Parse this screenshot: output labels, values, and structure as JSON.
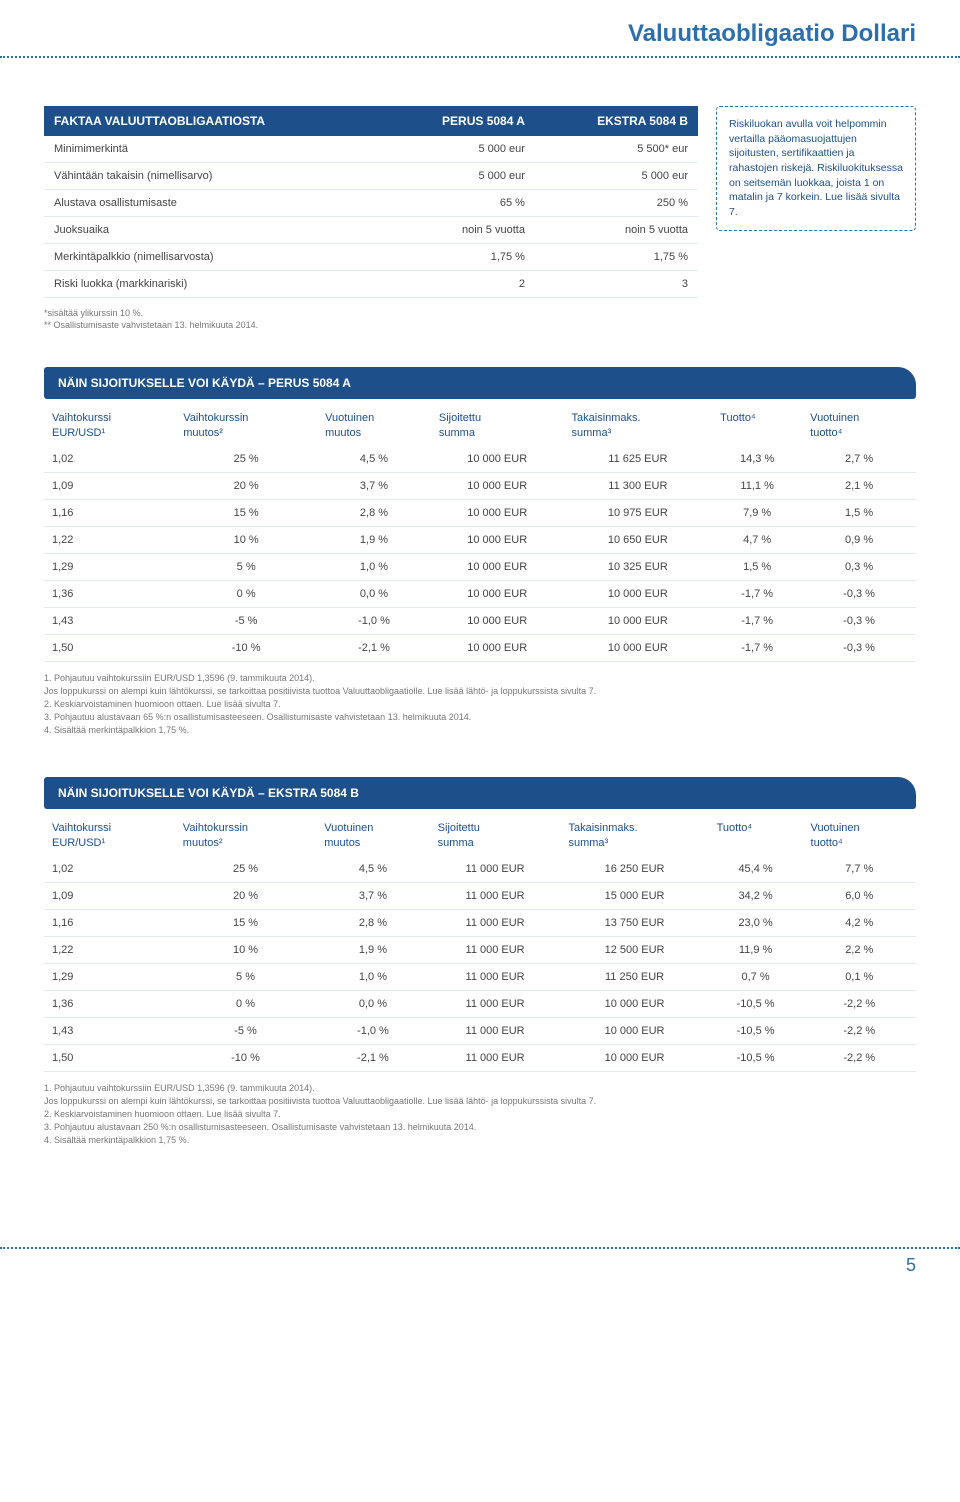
{
  "header": {
    "title": "Valuuttaobligaatio Dollari"
  },
  "facts": {
    "title": "FAKTAA VALUUTTAOBLIGAATIOSTA",
    "col1": "PERUS 5084 A",
    "col2": "EKSTRA 5084 B",
    "rows": [
      {
        "label": "Minimimerkintä",
        "a": "5 000 eur",
        "b": "5 500* eur"
      },
      {
        "label": "Vähintään takaisin (nimellisarvo)",
        "a": "5 000 eur",
        "b": "5 000 eur"
      },
      {
        "label": "Alustava osallistumisaste",
        "a": "65 %",
        "b": "250 %"
      },
      {
        "label": "Juoksuaika",
        "a": "noin 5 vuotta",
        "b": "noin 5 vuotta"
      },
      {
        "label": "Merkintäpalkkio (nimellisarvosta)",
        "a": "1,75 %",
        "b": "1,75 %"
      },
      {
        "label": "Riski luokka (markkinariski)",
        "a": "2",
        "b": "3"
      }
    ]
  },
  "riskbox": {
    "text": "Riskiluokan avulla voit helpommin vertailla pääomasuojattujen sijoitusten, sertifikaattien ja rahastojen riskejä. Riskiluokituksessa on seitsemän luokkaa, joista 1 on matalin ja 7 korkein. Lue lisää sivulta 7."
  },
  "factsFoot": {
    "l1": "*sisältää ylikurssin 10 %.",
    "l2": "** Osallistumisaste vahvistetaan 13. helmikuuta 2014."
  },
  "scenarioA": {
    "title": "NÄIN SIJOITUKSELLE VOI KÄYDÄ – PERUS 5084 A",
    "headers": {
      "c1a": "Vaihtokurssi",
      "c1b": "EUR/USD¹",
      "c2a": "Vaihtokurssin",
      "c2b": "muutos²",
      "c3a": "Vuotuinen",
      "c3b": "muutos",
      "c4a": "Sijoitettu",
      "c4b": "summa",
      "c5a": "Takaisinmaks.",
      "c5b": "summa³",
      "c6": "Tuotto⁴",
      "c7a": "Vuotuinen",
      "c7b": "tuotto⁴"
    },
    "rows": [
      [
        "1,02",
        "25 %",
        "4,5 %",
        "10 000 EUR",
        "11 625 EUR",
        "14,3 %",
        "2,7 %"
      ],
      [
        "1,09",
        "20 %",
        "3,7 %",
        "10 000 EUR",
        "11 300 EUR",
        "11,1 %",
        "2,1 %"
      ],
      [
        "1,16",
        "15 %",
        "2,8 %",
        "10 000 EUR",
        "10 975 EUR",
        "7,9 %",
        "1,5 %"
      ],
      [
        "1,22",
        "10 %",
        "1,9 %",
        "10 000 EUR",
        "10 650 EUR",
        "4,7 %",
        "0,9 %"
      ],
      [
        "1,29",
        "5 %",
        "1,0 %",
        "10 000 EUR",
        "10 325 EUR",
        "1,5 %",
        "0,3 %"
      ],
      [
        "1,36",
        "0 %",
        "0,0 %",
        "10 000 EUR",
        "10 000 EUR",
        "-1,7 %",
        "-0,3 %"
      ],
      [
        "1,43",
        "-5 %",
        "-1,0 %",
        "10 000 EUR",
        "10 000 EUR",
        "-1,7 %",
        "-0,3 %"
      ],
      [
        "1,50",
        "-10 %",
        "-2,1 %",
        "10 000 EUR",
        "10 000 EUR",
        "-1,7 %",
        "-0,3 %"
      ]
    ],
    "footnotes": [
      "1. Pohjautuu vaihtokurssiin EUR/USD 1,3596 (9. tammikuuta 2014).",
      "   Jos loppukurssi on alempi kuin lähtökurssi, se tarkoittaa positiivista tuottoa Valuuttaobligaatiolle. Lue lisää lähtö- ja loppukurssista sivulta 7.",
      "2. Keskiarvoistaminen huomioon ottaen. Lue lisää sivulta 7.",
      "3. Pohjautuu alustavaan 65 %:n osallistumisasteeseen. Osallistumisaste vahvistetaan 13. helmikuuta 2014.",
      "4. Sisältää merkintäpalkkion 1,75 %."
    ]
  },
  "scenarioB": {
    "title": "NÄIN SIJOITUKSELLE VOI KÄYDÄ – EKSTRA 5084 B",
    "rows": [
      [
        "1,02",
        "25 %",
        "4,5 %",
        "11 000 EUR",
        "16 250 EUR",
        "45,4 %",
        "7,7 %"
      ],
      [
        "1,09",
        "20 %",
        "3,7 %",
        "11 000 EUR",
        "15 000 EUR",
        "34,2 %",
        "6,0 %"
      ],
      [
        "1,16",
        "15 %",
        "2,8 %",
        "11 000 EUR",
        "13 750 EUR",
        "23,0 %",
        "4,2 %"
      ],
      [
        "1,22",
        "10 %",
        "1,9 %",
        "11 000 EUR",
        "12 500 EUR",
        "11,9 %",
        "2,2 %"
      ],
      [
        "1,29",
        "5 %",
        "1,0 %",
        "11 000 EUR",
        "11 250 EUR",
        "0,7 %",
        "0,1 %"
      ],
      [
        "1,36",
        "0 %",
        "0,0 %",
        "11 000 EUR",
        "10 000 EUR",
        "-10,5 %",
        "-2,2 %"
      ],
      [
        "1,43",
        "-5 %",
        "-1,0 %",
        "11 000 EUR",
        "10 000 EUR",
        "-10,5 %",
        "-2,2 %"
      ],
      [
        "1,50",
        "-10 %",
        "-2,1 %",
        "11 000 EUR",
        "10 000 EUR",
        "-10,5 %",
        "-2,2 %"
      ]
    ],
    "footnotes": [
      "1. Pohjautuu vaihtokurssiin EUR/USD 1,3596 (9. tammikuuta 2014).",
      "   Jos loppukurssi on alempi kuin lähtökurssi, se tarkoittaa positiivista tuottoa Valuuttaobligaatiolle. Lue lisää lähtö- ja loppukurssista sivulta 7.",
      "2. Keskiarvoistaminen huomioon ottaen. Lue lisää sivulta 7.",
      "3. Pohjautuu alustavaan 250 %:n osallistumisasteeseen. Osallistumisaste vahvistetaan 13. helmikuuta 2014.",
      "4. Sisältää merkintäpalkkion 1,75 %."
    ]
  },
  "pageNumber": "5",
  "colors": {
    "brand": "#2b6fad",
    "tableHeader": "#1d4f8b",
    "rowBorder": "#dfeaf2",
    "mutedText": "#777"
  }
}
